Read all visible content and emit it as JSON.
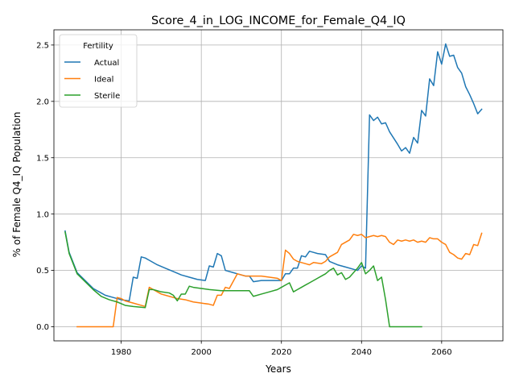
{
  "chart_data": {
    "type": "line",
    "title": "Score_4_in_LOG_INCOME_for_Female_Q4_IQ",
    "xlabel": "Years",
    "ylabel": "% of Female Q4_IQ Population",
    "xlim": [
      1963.2,
      2075.3
    ],
    "ylim": [
      -0.125,
      2.635
    ],
    "xticks": [
      1980,
      2000,
      2020,
      2040,
      2060
    ],
    "yticks": [
      0.0,
      0.5,
      1.0,
      1.5,
      2.0,
      2.5
    ],
    "xtick_labels": [
      "1980",
      "2000",
      "2020",
      "2040",
      "2060"
    ],
    "ytick_labels": [
      "0.0",
      "0.5",
      "1.0",
      "1.5",
      "2.0",
      "2.5"
    ],
    "grid": true,
    "legend": {
      "title": "Fertility",
      "placement": "top-left"
    },
    "series": [
      {
        "name": "Actual",
        "color": "#1f77b4",
        "points": [
          [
            1966,
            0.85
          ],
          [
            1967,
            0.66
          ],
          [
            1969,
            0.48
          ],
          [
            1971,
            0.41
          ],
          [
            1973,
            0.34
          ],
          [
            1975,
            0.3
          ],
          [
            1976,
            0.28
          ],
          [
            1978,
            0.26
          ],
          [
            1980,
            0.24
          ],
          [
            1982,
            0.23
          ],
          [
            1983,
            0.44
          ],
          [
            1984,
            0.43
          ],
          [
            1985,
            0.62
          ],
          [
            1986,
            0.61
          ],
          [
            1987,
            0.59
          ],
          [
            1989,
            0.55
          ],
          [
            1991,
            0.52
          ],
          [
            1993,
            0.49
          ],
          [
            1995,
            0.46
          ],
          [
            1997,
            0.44
          ],
          [
            1999,
            0.42
          ],
          [
            2001,
            0.41
          ],
          [
            2002,
            0.54
          ],
          [
            2003,
            0.53
          ],
          [
            2004,
            0.65
          ],
          [
            2005,
            0.63
          ],
          [
            2006,
            0.5
          ],
          [
            2008,
            0.48
          ],
          [
            2009,
            0.47
          ],
          [
            2011,
            0.45
          ],
          [
            2012,
            0.45
          ],
          [
            2013,
            0.4
          ],
          [
            2015,
            0.41
          ],
          [
            2017,
            0.41
          ],
          [
            2020,
            0.41
          ],
          [
            2021,
            0.47
          ],
          [
            2022,
            0.47
          ],
          [
            2023,
            0.52
          ],
          [
            2024,
            0.52
          ],
          [
            2025,
            0.63
          ],
          [
            2026,
            0.62
          ],
          [
            2027,
            0.67
          ],
          [
            2028,
            0.66
          ],
          [
            2029,
            0.65
          ],
          [
            2031,
            0.64
          ],
          [
            2032,
            0.58
          ],
          [
            2034,
            0.55
          ],
          [
            2036,
            0.53
          ],
          [
            2038,
            0.51
          ],
          [
            2039,
            0.5
          ],
          [
            2040,
            0.54
          ],
          [
            2041,
            0.52
          ],
          [
            2042,
            1.88
          ],
          [
            2043,
            1.83
          ],
          [
            2044,
            1.86
          ],
          [
            2045,
            1.8
          ],
          [
            2046,
            1.81
          ],
          [
            2047,
            1.73
          ],
          [
            2049,
            1.62
          ],
          [
            2050,
            1.56
          ],
          [
            2051,
            1.59
          ],
          [
            2052,
            1.54
          ],
          [
            2053,
            1.68
          ],
          [
            2054,
            1.63
          ],
          [
            2055,
            1.92
          ],
          [
            2056,
            1.87
          ],
          [
            2057,
            2.2
          ],
          [
            2058,
            2.14
          ],
          [
            2059,
            2.44
          ],
          [
            2060,
            2.33
          ],
          [
            2061,
            2.51
          ],
          [
            2062,
            2.4
          ],
          [
            2063,
            2.41
          ],
          [
            2064,
            2.3
          ],
          [
            2065,
            2.25
          ],
          [
            2066,
            2.13
          ],
          [
            2067,
            2.06
          ],
          [
            2068,
            1.98
          ],
          [
            2069,
            1.89
          ],
          [
            2070,
            1.93
          ]
        ]
      },
      {
        "name": "Ideal",
        "color": "#ff7f0e",
        "points": [
          [
            1969,
            0.0
          ],
          [
            1978,
            0.0
          ],
          [
            1979,
            0.26
          ],
          [
            1980,
            0.25
          ],
          [
            1981,
            0.23
          ],
          [
            1983,
            0.21
          ],
          [
            1985,
            0.19
          ],
          [
            1986,
            0.18
          ],
          [
            1987,
            0.35
          ],
          [
            1988,
            0.33
          ],
          [
            1990,
            0.29
          ],
          [
            1992,
            0.27
          ],
          [
            1994,
            0.25
          ],
          [
            1996,
            0.24
          ],
          [
            1998,
            0.22
          ],
          [
            2000,
            0.21
          ],
          [
            2002,
            0.2
          ],
          [
            2003,
            0.19
          ],
          [
            2004,
            0.28
          ],
          [
            2005,
            0.28
          ],
          [
            2006,
            0.35
          ],
          [
            2007,
            0.34
          ],
          [
            2009,
            0.47
          ],
          [
            2011,
            0.45
          ],
          [
            2013,
            0.45
          ],
          [
            2015,
            0.45
          ],
          [
            2017,
            0.44
          ],
          [
            2019,
            0.43
          ],
          [
            2020,
            0.41
          ],
          [
            2021,
            0.68
          ],
          [
            2022,
            0.65
          ],
          [
            2023,
            0.6
          ],
          [
            2024,
            0.58
          ],
          [
            2025,
            0.57
          ],
          [
            2027,
            0.55
          ],
          [
            2028,
            0.57
          ],
          [
            2030,
            0.56
          ],
          [
            2031,
            0.58
          ],
          [
            2032,
            0.62
          ],
          [
            2034,
            0.66
          ],
          [
            2035,
            0.73
          ],
          [
            2037,
            0.77
          ],
          [
            2038,
            0.82
          ],
          [
            2039,
            0.81
          ],
          [
            2040,
            0.82
          ],
          [
            2041,
            0.79
          ],
          [
            2042,
            0.8
          ],
          [
            2043,
            0.81
          ],
          [
            2044,
            0.8
          ],
          [
            2045,
            0.81
          ],
          [
            2046,
            0.8
          ],
          [
            2047,
            0.75
          ],
          [
            2048,
            0.73
          ],
          [
            2049,
            0.77
          ],
          [
            2050,
            0.76
          ],
          [
            2051,
            0.77
          ],
          [
            2052,
            0.76
          ],
          [
            2053,
            0.77
          ],
          [
            2054,
            0.75
          ],
          [
            2055,
            0.76
          ],
          [
            2056,
            0.75
          ],
          [
            2057,
            0.79
          ],
          [
            2058,
            0.78
          ],
          [
            2059,
            0.78
          ],
          [
            2060,
            0.75
          ],
          [
            2061,
            0.73
          ],
          [
            2062,
            0.66
          ],
          [
            2063,
            0.64
          ],
          [
            2064,
            0.61
          ],
          [
            2065,
            0.6
          ],
          [
            2066,
            0.65
          ],
          [
            2067,
            0.64
          ],
          [
            2068,
            0.73
          ],
          [
            2069,
            0.72
          ],
          [
            2070,
            0.83
          ]
        ]
      },
      {
        "name": "Sterile",
        "color": "#2ca02c",
        "points": [
          [
            1966,
            0.84
          ],
          [
            1967,
            0.65
          ],
          [
            1969,
            0.47
          ],
          [
            1971,
            0.4
          ],
          [
            1973,
            0.33
          ],
          [
            1975,
            0.27
          ],
          [
            1977,
            0.24
          ],
          [
            1979,
            0.22
          ],
          [
            1981,
            0.19
          ],
          [
            1983,
            0.18
          ],
          [
            1986,
            0.17
          ],
          [
            1987,
            0.33
          ],
          [
            1988,
            0.33
          ],
          [
            1990,
            0.31
          ],
          [
            1992,
            0.3
          ],
          [
            1993,
            0.28
          ],
          [
            1994,
            0.23
          ],
          [
            1995,
            0.29
          ],
          [
            1996,
            0.29
          ],
          [
            1997,
            0.36
          ],
          [
            1998,
            0.35
          ],
          [
            2000,
            0.34
          ],
          [
            2002,
            0.33
          ],
          [
            2005,
            0.32
          ],
          [
            2007,
            0.32
          ],
          [
            2009,
            0.32
          ],
          [
            2011,
            0.32
          ],
          [
            2012,
            0.32
          ],
          [
            2013,
            0.27
          ],
          [
            2015,
            0.29
          ],
          [
            2017,
            0.31
          ],
          [
            2019,
            0.33
          ],
          [
            2020,
            0.35
          ],
          [
            2021,
            0.37
          ],
          [
            2022,
            0.39
          ],
          [
            2023,
            0.31
          ],
          [
            2024,
            0.33
          ],
          [
            2025,
            0.35
          ],
          [
            2027,
            0.39
          ],
          [
            2029,
            0.43
          ],
          [
            2030,
            0.45
          ],
          [
            2031,
            0.47
          ],
          [
            2032,
            0.5
          ],
          [
            2033,
            0.52
          ],
          [
            2034,
            0.46
          ],
          [
            2035,
            0.48
          ],
          [
            2036,
            0.42
          ],
          [
            2037,
            0.44
          ],
          [
            2038,
            0.48
          ],
          [
            2039,
            0.52
          ],
          [
            2040,
            0.57
          ],
          [
            2041,
            0.47
          ],
          [
            2042,
            0.5
          ],
          [
            2043,
            0.54
          ],
          [
            2044,
            0.41
          ],
          [
            2045,
            0.44
          ],
          [
            2046,
            0.24
          ],
          [
            2047,
            0.0
          ],
          [
            2050,
            0.0
          ],
          [
            2053,
            0.0
          ],
          [
            2055,
            0.0
          ]
        ]
      }
    ]
  }
}
